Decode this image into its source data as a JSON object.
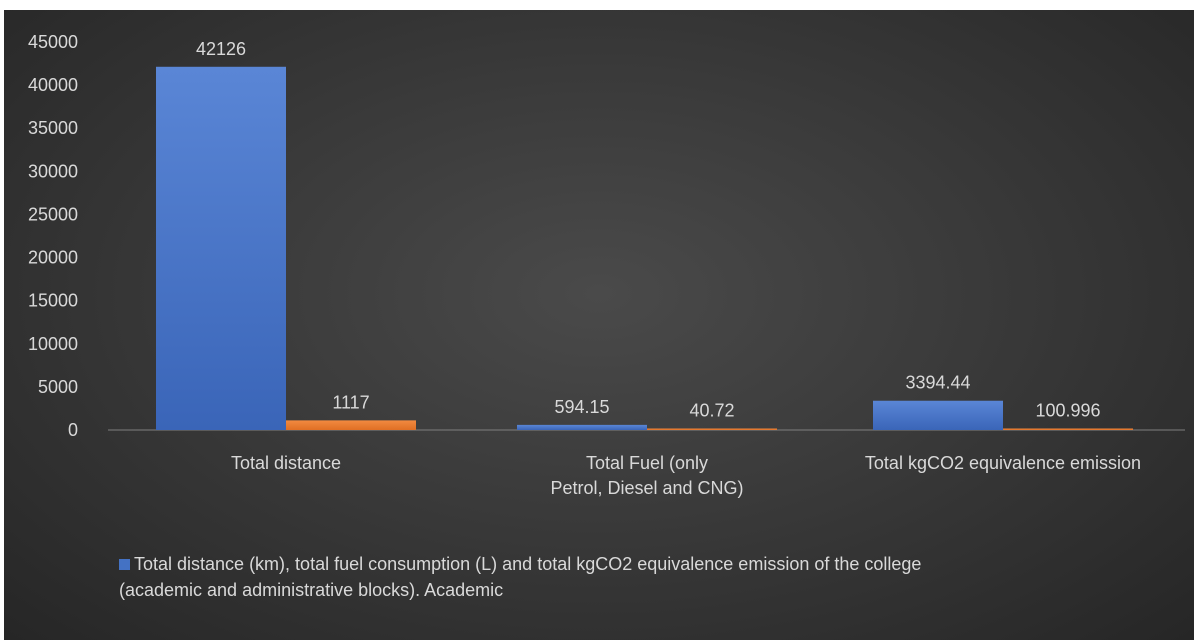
{
  "chart_data": {
    "type": "bar",
    "categories": [
      [
        "Total distance"
      ],
      [
        "Total Fuel (only",
        "Petrol, Diesel and CNG)"
      ],
      [
        "Total kgCO2 equivalence emission"
      ]
    ],
    "series": [
      {
        "name": "Total distance (km), total fuel consumption (L) and total kgCO2 equivalence emission of the college (academic and administrative blocks). Academic",
        "values": [
          42126,
          594.15,
          3394.44
        ],
        "labels": [
          "42126",
          "594.15",
          "3394.44"
        ],
        "color": "#4472c4"
      },
      {
        "values": [
          1117,
          40.72,
          100.996
        ],
        "labels": [
          "1117",
          "40.72",
          "100.996"
        ],
        "color": "#ed7d31"
      }
    ],
    "yticks": [
      "0",
      "5000",
      "10000",
      "15000",
      "20000",
      "25000",
      "30000",
      "35000",
      "40000",
      "45000"
    ],
    "ylim": [
      0,
      45000
    ],
    "legend_position": "bottom",
    "legend_lines": [
      "Total distance (km), total fuel consumption (L) and total kgCO2 equivalence emission of the college",
      "(academic and administrative blocks). Academic"
    ],
    "grid": false
  }
}
